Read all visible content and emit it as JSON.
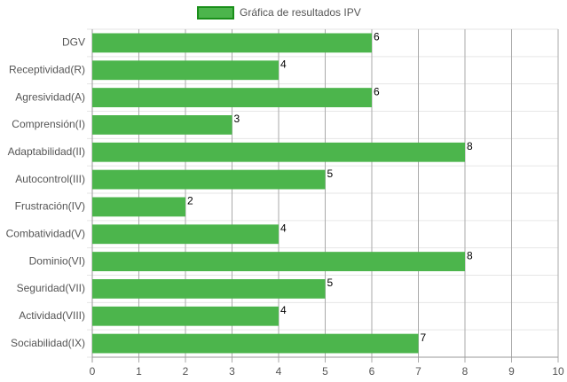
{
  "chart_data": {
    "type": "bar",
    "orientation": "horizontal",
    "categories": [
      "DGV",
      "Receptividad(R)",
      "Agresividad(A)",
      "Comprensión(I)",
      "Adaptabilidad(II)",
      "Autocontrol(III)",
      "Frustración(IV)",
      "Combatividad(V)",
      "Dominio(VI)",
      "Seguridad(VII)",
      "Actividad(VIII)",
      "Sociabilidad(IX)"
    ],
    "series": [
      {
        "name": "Gráfica de resultados IPV",
        "color": "#4cb54c",
        "values": [
          6,
          4,
          6,
          3,
          8,
          5,
          2,
          4,
          8,
          5,
          4,
          7
        ]
      }
    ],
    "xlim": [
      0,
      10
    ],
    "xticks": [
      0,
      1,
      2,
      3,
      4,
      5,
      6,
      7,
      8,
      9,
      10
    ],
    "grid": true,
    "legend": "top"
  }
}
